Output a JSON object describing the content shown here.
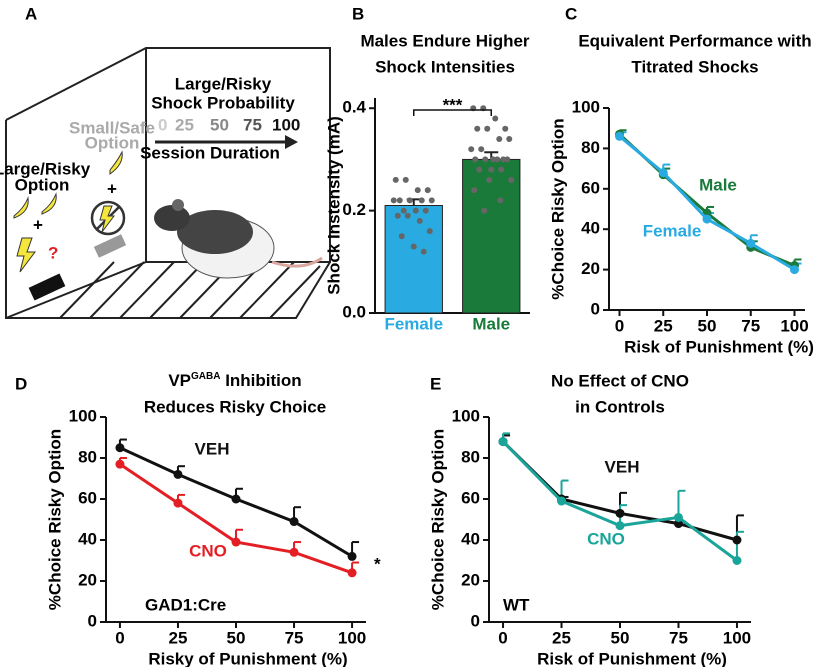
{
  "diagram": {
    "panel": "A",
    "header": [
      "Large/Risky",
      "Shock Probability"
    ],
    "probability_ticks": [
      "0",
      "25",
      "50",
      "75",
      "100"
    ],
    "arrow_label": "Session Duration",
    "safe_option": [
      "Small/Safe",
      "Option"
    ],
    "risky_option": [
      "Large/Risky",
      "Option"
    ],
    "plus": "+",
    "question": "?"
  },
  "chart_data": [
    {
      "panel": "B",
      "type": "bar",
      "title": [
        "Males Endure Higher",
        "Shock Intensities"
      ],
      "ylabel": "Shock Instensity (mA)",
      "categories": [
        "Female",
        "Male"
      ],
      "values": [
        0.21,
        0.3
      ],
      "errors": [
        0.012,
        0.014
      ],
      "colors": [
        "#29abe2",
        "#1a7a3a"
      ],
      "points": [
        [
          0.26,
          0.26,
          0.24,
          0.24,
          0.22,
          0.22,
          0.22,
          0.22,
          0.22,
          0.2,
          0.2,
          0.2,
          0.19,
          0.19,
          0.18,
          0.16,
          0.15,
          0.13,
          0.12
        ],
        [
          0.4,
          0.4,
          0.38,
          0.36,
          0.36,
          0.36,
          0.34,
          0.34,
          0.32,
          0.32,
          0.3,
          0.3,
          0.3,
          0.3,
          0.3,
          0.3,
          0.28,
          0.28,
          0.28,
          0.26,
          0.26,
          0.24,
          0.22,
          0.2
        ]
      ],
      "point_color": "#666666",
      "ylim": [
        0,
        0.42
      ],
      "yticks": [
        {
          "value": 0,
          "label": "0.0"
        },
        {
          "value": 0.2,
          "label": "0.2"
        },
        {
          "value": 0.4,
          "label": "0.4"
        }
      ],
      "significance": "***"
    },
    {
      "panel": "C",
      "type": "line",
      "title": [
        "Equivalent Performance with",
        "Titrated Shocks"
      ],
      "xlabel": "Risk of Punishment (%)",
      "ylabel": "%Choice Risky Option",
      "x": [
        0,
        25,
        50,
        75,
        100
      ],
      "xlim": [
        -6,
        106
      ],
      "ylim": [
        0,
        100
      ],
      "xticks": [
        0,
        25,
        50,
        75,
        100
      ],
      "yticks": [
        0,
        20,
        40,
        60,
        80,
        100
      ],
      "series": [
        {
          "name": "Male",
          "color": "#1a7a3a",
          "values": [
            87,
            67,
            48,
            31,
            22
          ],
          "errors": [
            2,
            3,
            3,
            3,
            3
          ]
        },
        {
          "name": "Female",
          "color": "#29abe2",
          "values": [
            86,
            68,
            45,
            33,
            20
          ],
          "errors": [
            2,
            4,
            3,
            4,
            3
          ]
        }
      ]
    },
    {
      "panel": "D",
      "type": "line",
      "title": [
        [
          "VP",
          "GABA",
          " Inhibition"
        ],
        "Reduces Risky Choice"
      ],
      "xlabel": "Risky of Punishment (%)",
      "ylabel": "%Choice Risky Option",
      "x": [
        0,
        25,
        50,
        75,
        100
      ],
      "xlim": [
        -6,
        106
      ],
      "ylim": [
        0,
        100
      ],
      "xticks": [
        0,
        25,
        50,
        75,
        100
      ],
      "yticks": [
        0,
        20,
        40,
        60,
        80,
        100
      ],
      "series": [
        {
          "name": "VEH",
          "color": "#111111",
          "values": [
            85,
            72,
            60,
            49,
            32
          ],
          "errors": [
            4,
            4,
            5,
            7,
            7
          ]
        },
        {
          "name": "CNO",
          "color": "#e31e24",
          "values": [
            77,
            58,
            39,
            34,
            24
          ],
          "errors": [
            3,
            4,
            6,
            5,
            5
          ]
        }
      ],
      "annotations": [
        "GAD1:Cre",
        "*"
      ]
    },
    {
      "panel": "E",
      "type": "line",
      "title": [
        "No Effect of CNO",
        "in Controls"
      ],
      "xlabel": "Risk of Punishment (%)",
      "ylabel": "%Choice Risky Option",
      "x": [
        0,
        25,
        50,
        75,
        100
      ],
      "xlim": [
        -6,
        106
      ],
      "ylim": [
        0,
        100
      ],
      "xticks": [
        0,
        25,
        50,
        75,
        100
      ],
      "yticks": [
        0,
        20,
        40,
        60,
        80,
        100
      ],
      "series": [
        {
          "name": "VEH",
          "color": "#111111",
          "values": [
            88,
            60,
            53,
            48,
            40
          ],
          "errors": [
            3,
            1,
            10,
            1,
            12
          ]
        },
        {
          "name": "CNO",
          "color": "#1aa59a",
          "values": [
            88,
            59,
            47,
            51,
            30
          ],
          "errors": [
            4,
            10,
            10,
            13,
            14
          ]
        }
      ],
      "annotations": [
        "WT"
      ]
    }
  ]
}
